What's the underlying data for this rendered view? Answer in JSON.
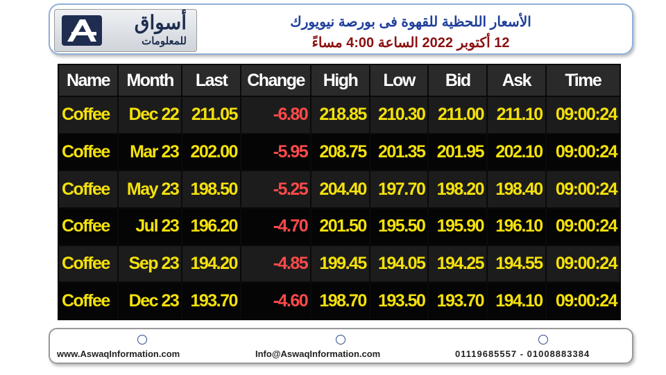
{
  "logo": {
    "name": "أسواق",
    "tagline": "للمعلومات"
  },
  "header": {
    "title_line1": "الأسعار اللحظية للقهوة فى بورصة نيويورك",
    "title_line2": "12 أكتوبر 2022 الساعة 4:00 مساءً"
  },
  "table": {
    "columns": [
      "Name",
      "Month",
      "Last",
      "Change",
      "High",
      "Low",
      "Bid",
      "Ask",
      "Time"
    ],
    "rows": [
      [
        "Coffee",
        "Dec 22",
        "211.05",
        "-6.80",
        "218.85",
        "210.30",
        "211.00",
        "211.10",
        "09:00:24"
      ],
      [
        "Coffee",
        "Mar 23",
        "202.00",
        "-5.95",
        "208.75",
        "201.35",
        "201.95",
        "202.10",
        "09:00:24"
      ],
      [
        "Coffee",
        "May 23",
        "198.50",
        "-5.25",
        "204.40",
        "197.70",
        "198.20",
        "198.40",
        "09:00:24"
      ],
      [
        "Coffee",
        "Jul 23",
        "196.20",
        "-4.70",
        "201.50",
        "195.50",
        "195.90",
        "196.10",
        "09:00:24"
      ],
      [
        "Coffee",
        "Sep 23",
        "194.20",
        "-4.85",
        "199.45",
        "194.05",
        "194.25",
        "194.55",
        "09:00:24"
      ],
      [
        "Coffee",
        "Dec 23",
        "193.70",
        "-4.60",
        "198.70",
        "193.50",
        "193.70",
        "194.10",
        "09:00:24"
      ]
    ]
  },
  "footer": {
    "website": "www.AswaqInformation.com",
    "email": "Info@AswaqInformation.com",
    "phone": "01119685557 - 01008883384"
  }
}
